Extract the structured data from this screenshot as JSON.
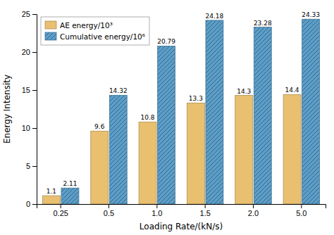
{
  "chart_data": {
    "type": "bar",
    "categories": [
      "0.25",
      "0.5",
      "1.0",
      "1.5",
      "2.0",
      "5.0"
    ],
    "series": [
      {
        "name": "AE energy/10³",
        "color": "#E8C070",
        "values": [
          1.1,
          9.6,
          10.8,
          13.3,
          14.3,
          14.4
        ]
      },
      {
        "name": "Cumulative energy/10⁶",
        "color": "#5B9EC9",
        "values": [
          2.11,
          14.32,
          20.79,
          24.18,
          23.28,
          24.33
        ]
      }
    ],
    "xlabel": "Loading Rate/(kN/s)",
    "ylabel": "Energy Intensity",
    "ylim": [
      0,
      25
    ],
    "yticks": [
      0,
      5,
      10,
      15,
      20,
      25
    ],
    "grid": false,
    "legend": "upper-left",
    "data_labels": true
  }
}
